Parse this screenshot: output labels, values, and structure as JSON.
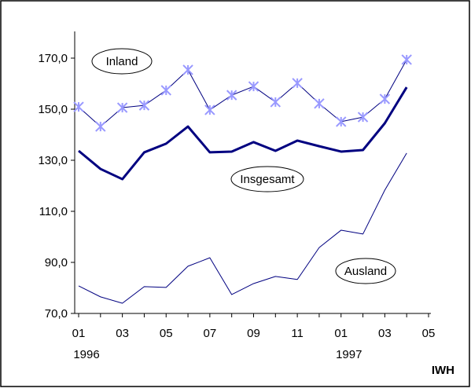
{
  "chart_data": {
    "type": "line",
    "categories": [
      "01",
      null,
      "03",
      null,
      "05",
      null,
      "07",
      null,
      "09",
      null,
      "11",
      null,
      "01",
      null,
      "03",
      null,
      "05"
    ],
    "year_labels": [
      "1996",
      null,
      null,
      null,
      null,
      null,
      null,
      null,
      null,
      null,
      null,
      null,
      "1997",
      null,
      null,
      null,
      null
    ],
    "series": [
      {
        "name": "Inland",
        "color": "#000080",
        "marker_color": "#9999ff",
        "marker": "asterisk",
        "width": 1,
        "values": [
          150.9,
          143.2,
          150.6,
          151.5,
          157.4,
          165.4,
          149.7,
          155.5,
          158.9,
          152.8,
          160.2,
          152.2,
          145.1,
          146.9,
          154.0,
          169.4,
          null
        ]
      },
      {
        "name": "Insgesamt",
        "color": "#000080",
        "width": 3,
        "values": [
          133.7,
          126.6,
          122.6,
          133.1,
          136.5,
          143.2,
          133.1,
          133.4,
          137.1,
          133.7,
          137.7,
          135.5,
          133.4,
          134.0,
          144.5,
          158.6,
          null
        ]
      },
      {
        "name": "Ausland",
        "color": "#000080",
        "width": 1,
        "values": [
          80.8,
          76.5,
          74.0,
          80.5,
          80.2,
          88.5,
          91.8,
          77.4,
          81.7,
          84.5,
          83.3,
          95.8,
          102.6,
          101.1,
          118.3,
          132.8,
          null
        ]
      }
    ],
    "ylim": [
      70,
      170
    ],
    "yticks": [
      {
        "value": 70,
        "label": "70,0"
      },
      {
        "value": 90,
        "label": "90,0"
      },
      {
        "value": 110,
        "label": "110,0"
      },
      {
        "value": 130,
        "label": "130,0"
      },
      {
        "value": 150,
        "label": "150,0"
      },
      {
        "value": 170,
        "label": "170,0"
      }
    ],
    "source": "IWH"
  }
}
